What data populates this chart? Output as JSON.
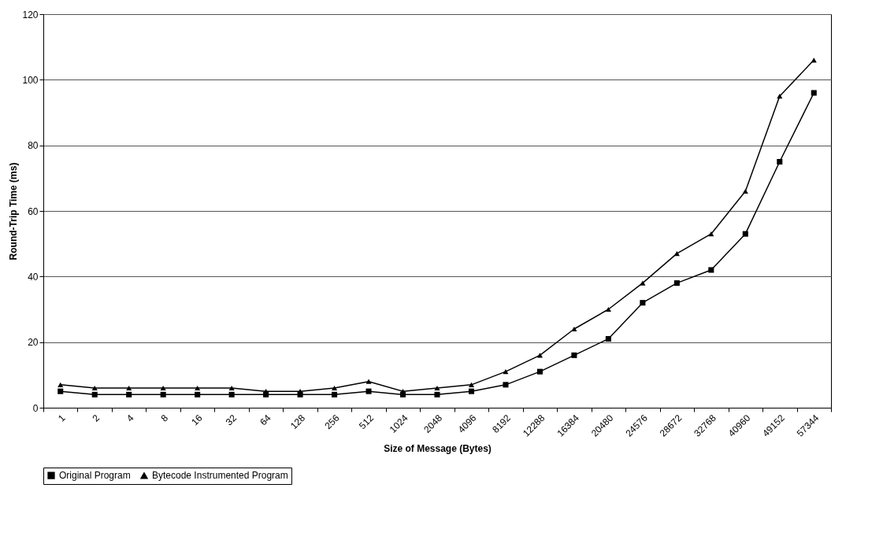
{
  "chart_data": {
    "type": "line",
    "xlabel": "Size of Message (Bytes)",
    "ylabel": "Round-Trip Time (ms)",
    "categories": [
      "1",
      "2",
      "4",
      "8",
      "16",
      "32",
      "64",
      "128",
      "256",
      "512",
      "1024",
      "2048",
      "4096",
      "8192",
      "12288",
      "16384",
      "20480",
      "24576",
      "28672",
      "32768",
      "40960",
      "49152",
      "57344"
    ],
    "series": [
      {
        "name": "Original Program",
        "color": "#000000",
        "marker": "square",
        "values": [
          5,
          4,
          4,
          4,
          4,
          4,
          4,
          4,
          4,
          5,
          4,
          4,
          5,
          7,
          11,
          16,
          21,
          32,
          38,
          42,
          53,
          75,
          96
        ]
      },
      {
        "name": "Bytecode Instrumented Program",
        "color": "#000000",
        "marker": "triangle",
        "values": [
          7,
          6,
          6,
          6,
          6,
          6,
          5,
          5,
          6,
          8,
          5,
          6,
          7,
          11,
          16,
          24,
          30,
          38,
          47,
          53,
          66,
          95,
          106
        ]
      }
    ],
    "ylim": [
      0,
      120
    ],
    "yticks": [
      0,
      20,
      40,
      60,
      80,
      100,
      120
    ],
    "grid": "y",
    "legend": "bottom",
    "line_style": "solid"
  }
}
